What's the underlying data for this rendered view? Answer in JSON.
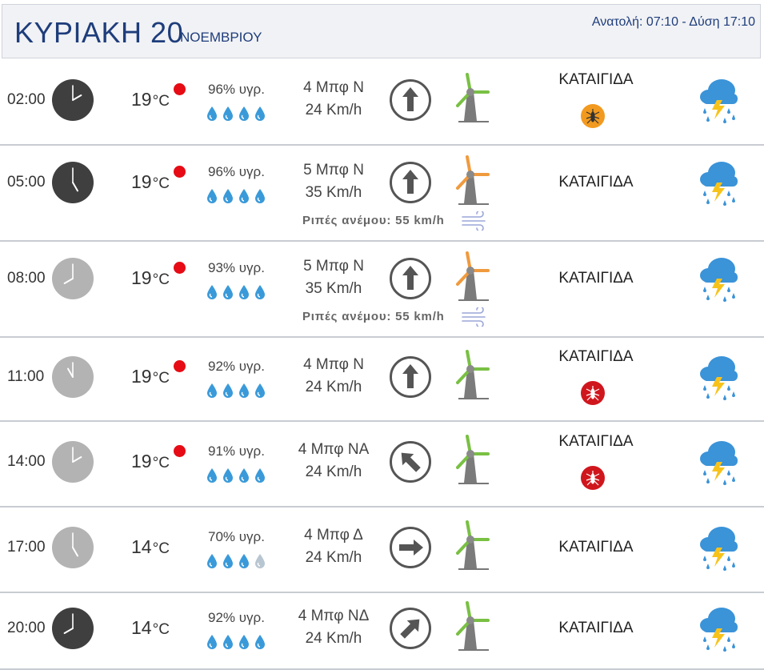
{
  "header": {
    "day": "ΚΥΡΙΑΚΗ 20",
    "month": "ΝΟΕΜΒΡΙΟΥ",
    "sun": "Ανατολή: 07:10  - Δύση 17:10"
  },
  "colors": {
    "title": "#1e3d7b",
    "alert_dot": "#e60b14",
    "drop_full": "#3a9ad9",
    "drop_empty": "#b8c6d2",
    "turbine_green": "#79c043",
    "turbine_orange": "#f09a3e",
    "badge_orange": "#f29a1f",
    "badge_red": "#d0161d",
    "night_clock": "#3f3f3f",
    "day_clock": "#b3b3b3"
  },
  "rows": [
    {
      "time": "02:00",
      "clock": "night",
      "temp": "19",
      "unit": "°C",
      "alert": true,
      "humidity": "96% υγρ.",
      "drops": 4,
      "beaufort": "4 Μπφ Ν",
      "speed": "24 Km/h",
      "direction": "N",
      "turbine": "green",
      "gust": "",
      "condition": "ΚΑΤΑΙΓΙΔΑ",
      "badge": "orange",
      "icon": "thunderstorm-rain-icon"
    },
    {
      "time": "05:00",
      "clock": "night",
      "temp": "19",
      "unit": "°C",
      "alert": true,
      "humidity": "96% υγρ.",
      "drops": 4,
      "beaufort": "5 Μπφ Ν",
      "speed": "35 Km/h",
      "direction": "N",
      "turbine": "orange",
      "gust": "Ριπές ανέμου: 55 km/h",
      "condition": "ΚΑΤΑΙΓΙΔΑ",
      "badge": "",
      "icon": "thunderstorm-rain-icon"
    },
    {
      "time": "08:00",
      "clock": "day",
      "temp": "19",
      "unit": "°C",
      "alert": true,
      "humidity": "93% υγρ.",
      "drops": 4,
      "beaufort": "5 Μπφ Ν",
      "speed": "35 Km/h",
      "direction": "N",
      "turbine": "orange",
      "gust": "Ριπές ανέμου: 55 km/h",
      "condition": "ΚΑΤΑΙΓΙΔΑ",
      "badge": "",
      "icon": "thunderstorm-rain-icon"
    },
    {
      "time": "11:00",
      "clock": "day",
      "temp": "19",
      "unit": "°C",
      "alert": true,
      "humidity": "92% υγρ.",
      "drops": 4,
      "beaufort": "4 Μπφ Ν",
      "speed": "24 Km/h",
      "direction": "N",
      "turbine": "green",
      "gust": "",
      "condition": "ΚΑΤΑΙΓΙΔΑ",
      "badge": "red",
      "icon": "thunderstorm-rain-icon"
    },
    {
      "time": "14:00",
      "clock": "day",
      "temp": "19",
      "unit": "°C",
      "alert": true,
      "humidity": "91% υγρ.",
      "drops": 4,
      "beaufort": "4 Μπφ ΝΑ",
      "speed": "24 Km/h",
      "direction": "SE",
      "turbine": "green",
      "gust": "",
      "condition": "ΚΑΤΑΙΓΙΔΑ",
      "badge": "red",
      "icon": "thunderstorm-rain-icon"
    },
    {
      "time": "17:00",
      "clock": "day",
      "temp": "14",
      "unit": "°C",
      "alert": false,
      "humidity": "70% υγρ.",
      "drops": 3,
      "beaufort": "4 Μπφ Δ",
      "speed": "24 Km/h",
      "direction": "W",
      "turbine": "green",
      "gust": "",
      "condition": "ΚΑΤΑΙΓΙΔΑ",
      "badge": "",
      "icon": "thunderstorm-rain-icon"
    },
    {
      "time": "20:00",
      "clock": "night",
      "temp": "14",
      "unit": "°C",
      "alert": false,
      "humidity": "92% υγρ.",
      "drops": 4,
      "beaufort": "4 Μπφ ΝΔ",
      "speed": "24 Km/h",
      "direction": "SW",
      "turbine": "green",
      "gust": "",
      "condition": "ΚΑΤΑΙΓΙΔΑ",
      "badge": "",
      "icon": "thunderstorm-rain-icon"
    }
  ]
}
